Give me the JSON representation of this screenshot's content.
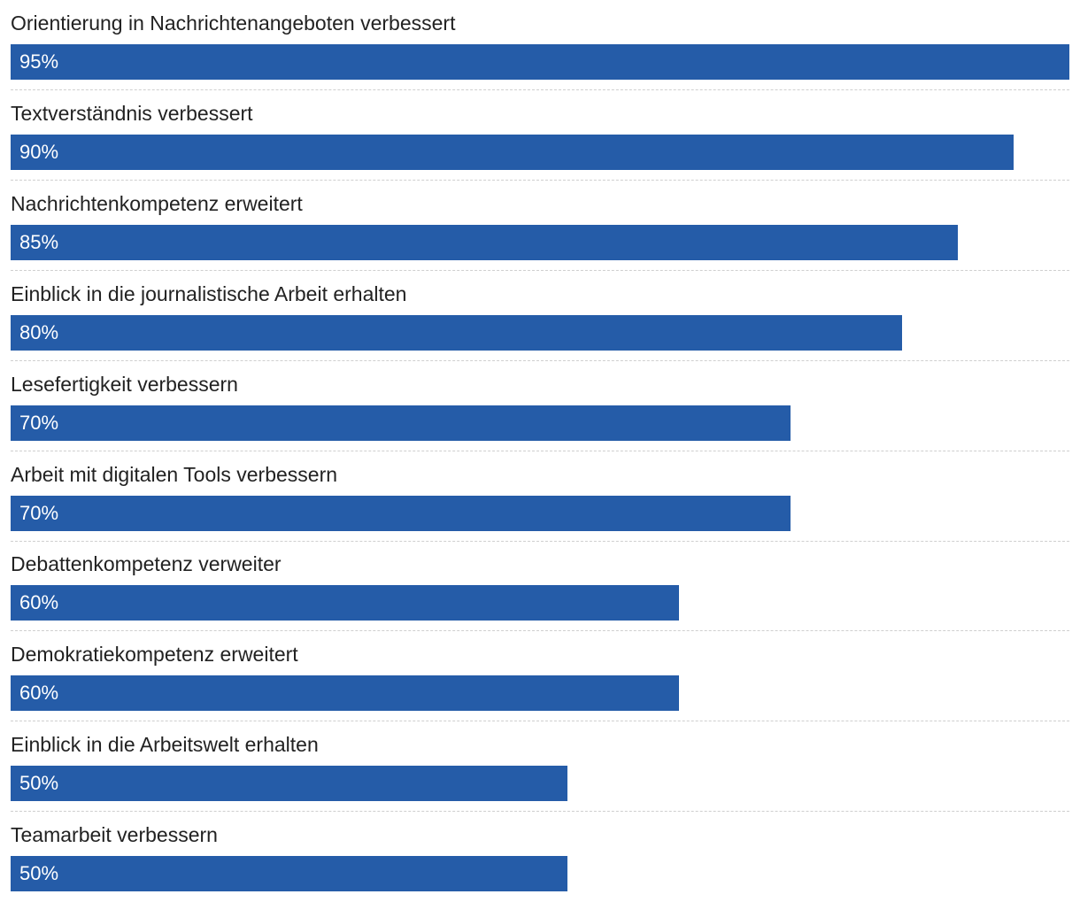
{
  "chart_data": {
    "type": "bar",
    "orientation": "horizontal",
    "title": "",
    "xlabel": "",
    "ylabel": "",
    "xlim": [
      0,
      95
    ],
    "grid": false,
    "legend": "none",
    "bar_color": "#255ca8",
    "value_suffix": "%",
    "categories": [
      "Orientierung in Nachrichtenangeboten verbessert",
      "Textverständnis verbessert",
      "Nachrichtenkompetenz erweitert",
      "Einblick in die journalistische Arbeit erhalten",
      "Lesefertigkeit verbessern",
      "Arbeit mit digitalen Tools verbessern",
      "Debattenkompetenz verweiter",
      "Demokratiekompetenz erweitert",
      "Einblick in die Arbeitswelt erhalten",
      "Teamarbeit verbessern"
    ],
    "values": [
      95,
      90,
      85,
      80,
      70,
      70,
      60,
      60,
      50,
      50
    ],
    "value_labels": [
      "95%",
      "90%",
      "85%",
      "80%",
      "70%",
      "70%",
      "60%",
      "60%",
      "50%",
      "50%"
    ]
  }
}
